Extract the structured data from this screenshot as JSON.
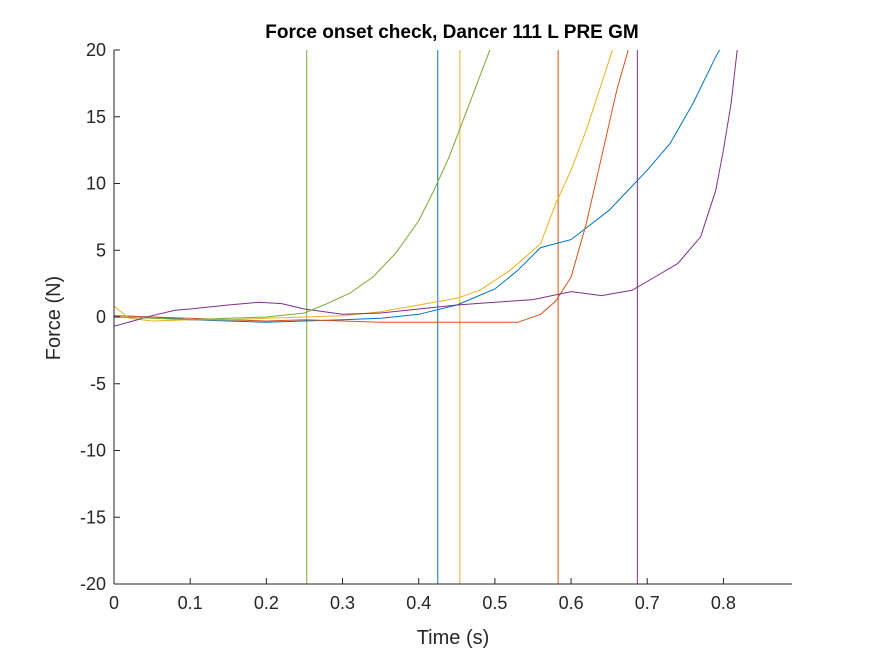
{
  "chart_data": {
    "type": "line",
    "title": "Force onset check, Dancer 111 L PRE GM",
    "xlabel": "Time (s)",
    "ylabel": "Force (N)",
    "xlim": [
      0,
      0.89
    ],
    "ylim": [
      -20,
      20
    ],
    "xticks": [
      0,
      0.1,
      0.2,
      0.3,
      0.4,
      0.5,
      0.6,
      0.7,
      0.8
    ],
    "xtick_labels": [
      "0",
      "0.1",
      "0.2",
      "0.3",
      "0.4",
      "0.5",
      "0.6",
      "0.7",
      "0.8"
    ],
    "yticks": [
      -20,
      -15,
      -10,
      -5,
      0,
      5,
      10,
      15,
      20
    ],
    "ytick_labels": [
      "-20",
      "-15",
      "-10",
      "-5",
      "0",
      "5",
      "10",
      "15",
      "20"
    ],
    "grid": false,
    "legend": "none",
    "series": [
      {
        "color": "#0072BD",
        "x": [
          0,
          0.05,
          0.1,
          0.15,
          0.2,
          0.25,
          0.3,
          0.35,
          0.4,
          0.45,
          0.5,
          0.53,
          0.56,
          0.6,
          0.65,
          0.7,
          0.73,
          0.76,
          0.79,
          0.8
        ],
        "y": [
          0.1,
          0.0,
          -0.2,
          -0.3,
          -0.4,
          -0.3,
          -0.2,
          -0.1,
          0.2,
          0.9,
          2.1,
          3.5,
          5.2,
          5.8,
          8.0,
          11.0,
          13.0,
          16.0,
          19.5,
          20.5
        ]
      },
      {
        "color": "#D95319",
        "x": [
          0,
          0.05,
          0.1,
          0.15,
          0.2,
          0.25,
          0.3,
          0.35,
          0.4,
          0.45,
          0.5,
          0.53,
          0.56,
          0.58,
          0.6,
          0.62,
          0.64,
          0.66,
          0.68
        ],
        "y": [
          0.1,
          0.0,
          -0.1,
          -0.2,
          -0.3,
          -0.2,
          -0.3,
          -0.4,
          -0.4,
          -0.4,
          -0.4,
          -0.4,
          0.2,
          1.2,
          3.0,
          7.0,
          12.0,
          17.0,
          21.0
        ]
      },
      {
        "color": "#EDB120",
        "x": [
          0,
          0.02,
          0.05,
          0.1,
          0.15,
          0.2,
          0.25,
          0.3,
          0.35,
          0.4,
          0.45,
          0.48,
          0.52,
          0.56,
          0.58,
          0.6,
          0.62,
          0.64,
          0.66
        ],
        "y": [
          0.8,
          -0.1,
          -0.3,
          -0.2,
          -0.2,
          -0.1,
          0.0,
          0.1,
          0.4,
          0.9,
          1.4,
          2.0,
          3.5,
          5.5,
          8.5,
          11.0,
          14.0,
          17.5,
          21.0
        ]
      },
      {
        "color": "#7E2F8E",
        "x": [
          0,
          0.05,
          0.08,
          0.1,
          0.15,
          0.19,
          0.22,
          0.25,
          0.3,
          0.35,
          0.4,
          0.45,
          0.5,
          0.55,
          0.6,
          0.64,
          0.68,
          0.71,
          0.74,
          0.77,
          0.79,
          0.8,
          0.81,
          0.82
        ],
        "y": [
          -0.7,
          0.1,
          0.5,
          0.6,
          0.9,
          1.1,
          1.0,
          0.6,
          0.2,
          0.3,
          0.6,
          0.9,
          1.1,
          1.3,
          1.9,
          1.6,
          2.0,
          3.0,
          4.0,
          6.0,
          9.5,
          12.5,
          16.0,
          21.0
        ]
      },
      {
        "color": "#77AC30",
        "x": [
          0,
          0.05,
          0.1,
          0.15,
          0.2,
          0.25,
          0.28,
          0.31,
          0.34,
          0.37,
          0.4,
          0.42,
          0.44,
          0.46,
          0.48,
          0.5
        ],
        "y": [
          0.0,
          -0.1,
          -0.2,
          -0.1,
          0.0,
          0.3,
          1.0,
          1.8,
          3.0,
          4.8,
          7.2,
          9.5,
          12.0,
          15.0,
          18.0,
          21.0
        ]
      }
    ],
    "vertical_lines": [
      {
        "x": 0.253,
        "color": "#77AC30"
      },
      {
        "x": 0.425,
        "color": "#0072BD"
      },
      {
        "x": 0.454,
        "color": "#EDB120"
      },
      {
        "x": 0.583,
        "color": "#D95319"
      },
      {
        "x": 0.687,
        "color": "#7E2F8E"
      }
    ]
  }
}
